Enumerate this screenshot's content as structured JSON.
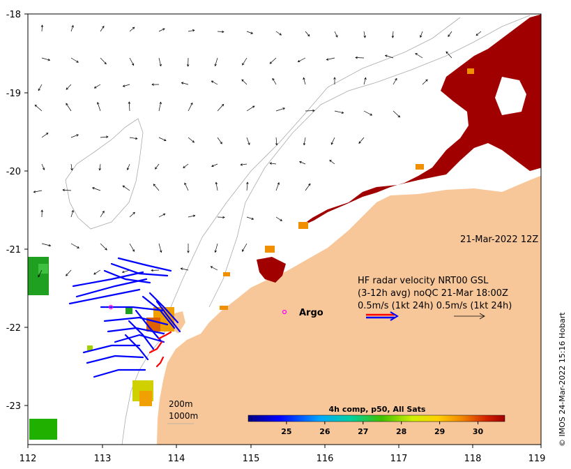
{
  "map": {
    "date_stamp": "21-Mar-2022 12Z",
    "credit": "© IMOS 24-Mar-2022 15:16 Hobart",
    "x_ticks": [
      "112",
      "113",
      "114",
      "115",
      "116",
      "117",
      "118",
      "119"
    ],
    "y_ticks": [
      "-18",
      "-19",
      "-20",
      "-21",
      "-22",
      "-23"
    ],
    "argo_label": "Argo",
    "legend": {
      "line1": "HF radar velocity  NRT00 GSL",
      "line2": "(3-12h avg) noQC 21-Mar 18:00Z",
      "line3": "0.5m/s (1kt 24h)   0.5m/s (1kt 24h)"
    },
    "isobath_labels": {
      "a": "200m",
      "b": "1000m"
    },
    "colorbar": {
      "title": "4h comp, p50, All Sats",
      "ticks": [
        "25",
        "26",
        "27",
        "28",
        "29",
        "30"
      ],
      "range": [
        24.0,
        30.7
      ]
    },
    "colors": {
      "land": "#f8c799",
      "sst_hot": "#a00000",
      "radar_blue": "#0000ff",
      "radar_red": "#ff0000",
      "argo_marker": "#ff00ff"
    }
  }
}
